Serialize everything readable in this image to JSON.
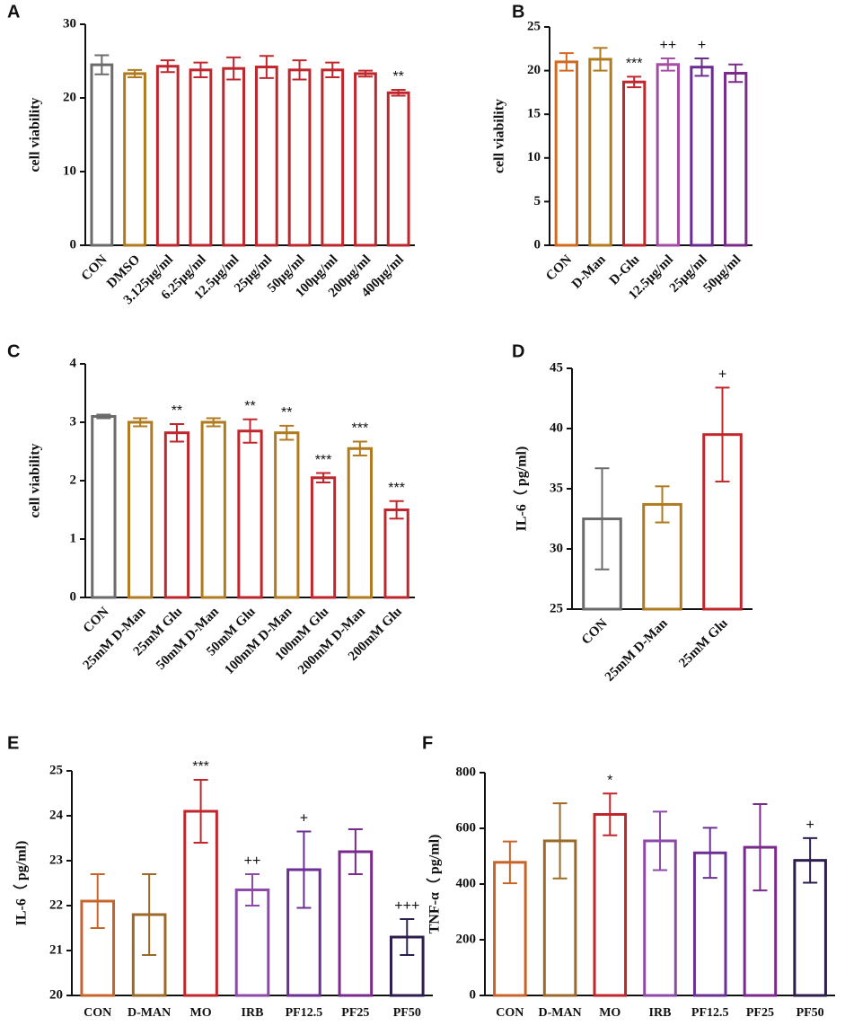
{
  "chart_data": [
    {
      "panel": "A",
      "type": "bar",
      "ylabel": "cell viability",
      "categories": [
        "CON",
        "DMSO",
        "3.125μg/ml",
        "6.25μg/ml",
        "12.5μg/ml",
        "25μg/ml",
        "50μg/ml",
        "100μg/ml",
        "200μg/ml",
        "400μg/ml"
      ],
      "values": [
        24.5,
        23.3,
        24.3,
        23.8,
        24.0,
        24.2,
        23.8,
        23.8,
        23.3,
        20.7
      ],
      "errors": [
        1.3,
        0.5,
        0.8,
        1.0,
        1.5,
        1.5,
        1.3,
        1.0,
        0.4,
        0.4
      ],
      "colors": [
        "#6b6b6b",
        "#b07a1e",
        "#c0272d",
        "#c0272d",
        "#c0272d",
        "#c0272d",
        "#c0272d",
        "#c0272d",
        "#c0272d",
        "#c0272d"
      ],
      "annotations": [
        null,
        null,
        null,
        null,
        null,
        null,
        null,
        null,
        null,
        "**"
      ],
      "ylim": [
        0,
        30
      ],
      "yticks": [
        0,
        10,
        20,
        30
      ]
    },
    {
      "panel": "B",
      "type": "bar",
      "ylabel": "cell viability",
      "categories": [
        "CON",
        "D-Man",
        "D-Glu",
        "12.5μg/ml",
        "25μg/ml",
        "50μg/ml"
      ],
      "values": [
        21.0,
        21.3,
        18.7,
        20.7,
        20.4,
        19.7
      ],
      "errors": [
        1.0,
        1.3,
        0.6,
        0.7,
        1.0,
        1.0
      ],
      "colors": [
        "#d2691e",
        "#b07a1e",
        "#c0272d",
        "#a64ca6",
        "#6a2c91",
        "#7b2a8a"
      ],
      "annotations": [
        null,
        null,
        "***",
        "++",
        "+",
        null
      ],
      "ylim": [
        0,
        25
      ],
      "yticks": [
        0,
        5,
        10,
        15,
        20,
        25
      ]
    },
    {
      "panel": "C",
      "type": "bar",
      "ylabel": "cell viability",
      "categories": [
        "CON",
        "25mM D-Man",
        "25mM Glu",
        "50mM D-Man",
        "50mM Glu",
        "100mM D-Man",
        "100mM Glu",
        "200mM D-Man",
        "200mM Glu"
      ],
      "values": [
        3.1,
        3.0,
        2.82,
        3.0,
        2.85,
        2.82,
        2.05,
        2.55,
        1.5
      ],
      "errors": [
        0.03,
        0.07,
        0.15,
        0.07,
        0.2,
        0.12,
        0.08,
        0.12,
        0.15
      ],
      "colors": [
        "#6b6b6b",
        "#b07a1e",
        "#c0272d",
        "#b07a1e",
        "#c0272d",
        "#b07a1e",
        "#c0272d",
        "#b07a1e",
        "#c0272d"
      ],
      "annotations": [
        null,
        null,
        "**",
        null,
        "**",
        "**",
        "***",
        "***",
        "***"
      ],
      "ylim": [
        0,
        4
      ],
      "yticks": [
        0,
        1,
        2,
        3,
        4
      ]
    },
    {
      "panel": "D",
      "type": "bar",
      "ylabel": "IL-6（ pg/ml)",
      "categories": [
        "CON",
        "25mM D-Man",
        "25mM Glu"
      ],
      "values": [
        32.5,
        33.7,
        39.5
      ],
      "errors": [
        4.2,
        1.5,
        3.9
      ],
      "colors": [
        "#6b6b6b",
        "#b07a1e",
        "#c0272d"
      ],
      "annotations": [
        null,
        null,
        "+"
      ],
      "ylim": [
        25,
        45
      ],
      "yticks": [
        25,
        30,
        35,
        40,
        45
      ]
    },
    {
      "panel": "E",
      "type": "bar",
      "ylabel": "IL-6（ pg/ml)",
      "categories": [
        "CON",
        "D-MAN",
        "MO",
        "IRB",
        "PF12.5",
        "PF25",
        "PF50"
      ],
      "values": [
        22.1,
        21.8,
        24.1,
        22.35,
        22.8,
        23.2,
        21.3
      ],
      "errors": [
        0.6,
        0.9,
        0.7,
        0.35,
        0.85,
        0.5,
        0.4
      ],
      "colors": [
        "#c8642a",
        "#9c6a28",
        "#c0272d",
        "#8e4aa8",
        "#6b3093",
        "#7a2a8c",
        "#2e1e4e"
      ],
      "annotations": [
        null,
        null,
        "***",
        "++",
        "+",
        null,
        "+++"
      ],
      "ylim": [
        20,
        25
      ],
      "yticks": [
        20,
        21,
        22,
        23,
        24,
        25
      ]
    },
    {
      "panel": "F",
      "type": "bar",
      "ylabel": "TNF-α（ pg/ml)",
      "categories": [
        "CON",
        "D-MAN",
        "MO",
        "IRB",
        "PF12.5",
        "PF25",
        "PF50"
      ],
      "values": [
        478,
        555,
        650,
        555,
        512,
        532,
        485
      ],
      "errors": [
        75,
        135,
        75,
        105,
        90,
        155,
        80
      ],
      "colors": [
        "#c8642a",
        "#9c6a28",
        "#c0272d",
        "#8e4aa8",
        "#6b3093",
        "#7a2a8c",
        "#2e1e4e"
      ],
      "annotations": [
        null,
        null,
        "*",
        null,
        null,
        null,
        "+"
      ],
      "ylim": [
        0,
        800
      ],
      "yticks": [
        0,
        200,
        400,
        600,
        800
      ]
    }
  ]
}
